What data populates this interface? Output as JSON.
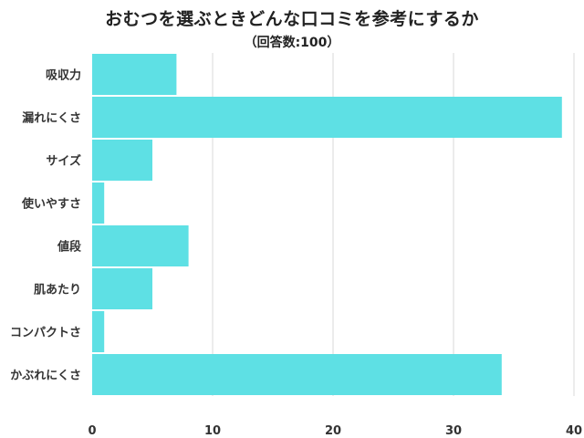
{
  "title": "おむつを選ぶときどんな口コミを参考にするか",
  "subtitle": "（回答数:100）",
  "chart_data": {
    "type": "bar",
    "orientation": "horizontal",
    "title": "おむつを選ぶときどんな口コミを参考にするか",
    "subtitle": "（回答数:100）",
    "categories": [
      "吸収力",
      "漏れにくさ",
      "サイズ",
      "使いやすさ",
      "値段",
      "肌あたり",
      "コンパクトさ",
      "かぶれにくさ"
    ],
    "values": [
      7,
      39,
      5,
      1,
      8,
      5,
      1,
      34
    ],
    "xlim": [
      0,
      40
    ],
    "xticks": [
      0,
      10,
      20,
      30,
      40
    ],
    "xlabel": "",
    "ylabel": "",
    "grid": true,
    "bar_color": "#5ee0e4",
    "grid_color": "#d9d9d9"
  }
}
